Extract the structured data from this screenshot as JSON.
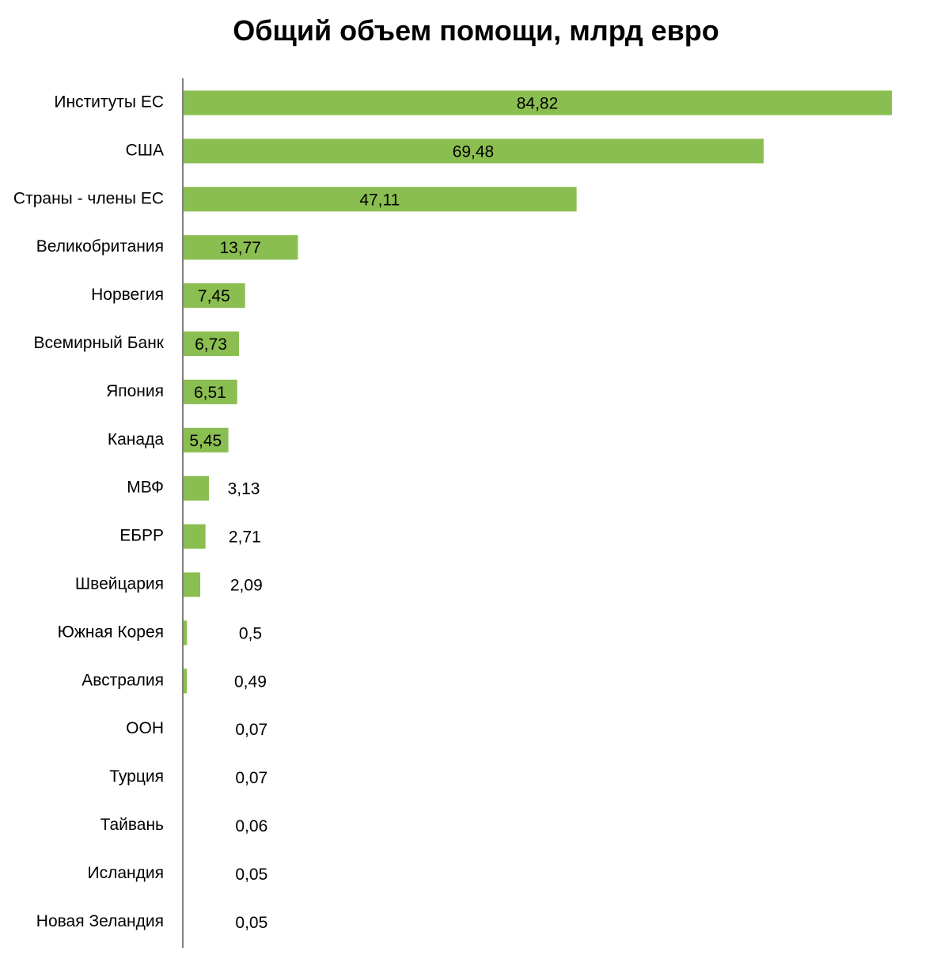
{
  "chart_data": {
    "type": "bar",
    "orientation": "horizontal",
    "title": "Общий объем помощи, млрд евро",
    "xlabel": "",
    "ylabel": "",
    "categories": [
      "Институты ЕС",
      "США",
      "Страны - члены ЕС",
      "Великобритания",
      "Норвегия",
      "Всемирный Банк",
      "Япония",
      "Канада",
      "МВФ",
      "ЕБРР",
      "Швейцария",
      "Южная Корея",
      "Австралия",
      "ООН",
      "Турция",
      "Тайвань",
      "Исландия",
      "Новая Зеландия"
    ],
    "values": [
      84.82,
      69.48,
      47.11,
      13.77,
      7.45,
      6.73,
      6.51,
      5.45,
      3.13,
      2.71,
      2.09,
      0.5,
      0.49,
      0.07,
      0.07,
      0.06,
      0.05,
      0.05
    ],
    "value_labels": [
      "84,82",
      "69,48",
      "47,11",
      "13,77",
      "7,45",
      "6,73",
      "6,51",
      "5,45",
      "3,13",
      "2,71",
      "2,09",
      "0,5",
      "0,49",
      "0,07",
      "0,07",
      "0,06",
      "0,05",
      "0,05"
    ],
    "bar_color": "#8BBE50",
    "axis_color": "#808080",
    "grid": false,
    "legend": "none"
  }
}
